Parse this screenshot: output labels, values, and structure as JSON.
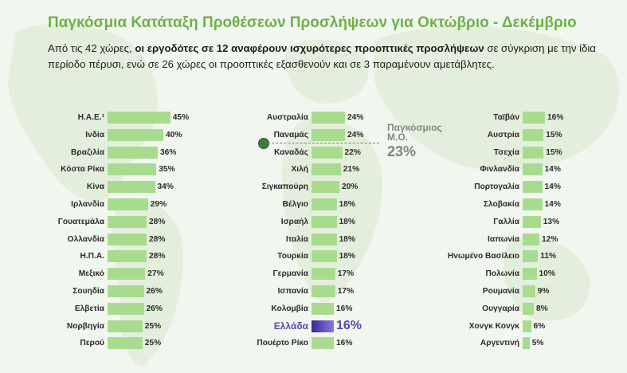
{
  "title": "Παγκόσμια Κατάταξη Προθέσεων Προσλήψεων για Οκτώβριο - Δεκέμβριο",
  "intro": {
    "part1": "Από τις 42 χώρες, ",
    "bold": "οι εργοδότες σε 12 αναφέρουν ισχυρότερες προοπτικές προσλήψεων",
    "part2": " σε σύγκριση με την ίδια περίοδο πέρυσι, ενώ σε 26 χώρες οι προοπτικές εξασθενούν και σε 3 παραμένουν αμετάβλητες."
  },
  "average": {
    "label_line1": "Παγκόσμιος",
    "label_line2": "Μ.Ο.",
    "value_label": "23%",
    "value": 23
  },
  "highlight_color": "#5844b8",
  "bar_color": "#a9db8f",
  "title_color": "#6fb04b",
  "chart_data": {
    "type": "bar",
    "orientation": "horizontal",
    "unit": "%",
    "columns": [
      {
        "categories": [
          "Η.Α.Ε.¹",
          "Ινδία",
          "Βραζιλία",
          "Κόστα Ρίκα",
          "Κίνα",
          "Ιρλανδία",
          "Γουατεμάλα",
          "Ολλανδία",
          "Η.Π.Α.",
          "Μεξικό",
          "Σουηδία",
          "Ελβετία",
          "Νορβηγία",
          "Περού"
        ],
        "values": [
          45,
          40,
          36,
          35,
          34,
          29,
          28,
          28,
          28,
          27,
          26,
          26,
          25,
          25
        ],
        "labels": [
          "45%",
          "40%",
          "36%",
          "35%",
          "34%",
          "29%",
          "28%",
          "28%",
          "28%",
          "27%",
          "26%",
          "26%",
          "25%",
          "25%"
        ]
      },
      {
        "categories": [
          "Αυστραλία",
          "Παναμάς",
          "Καναδάς",
          "Χιλή",
          "Σιγκαπούρη",
          "Βέλγιο",
          "Ισραήλ",
          "Ιταλία",
          "Τουρκία",
          "Γερμανία",
          "Ισπανία",
          "Κολομβία",
          "Ελλάδα",
          "Πουέρτο Ρίκο"
        ],
        "values": [
          24,
          24,
          22,
          21,
          20,
          18,
          18,
          18,
          18,
          17,
          17,
          16,
          16,
          16
        ],
        "labels": [
          "24%",
          "24%",
          "22%",
          "21%",
          "20%",
          "18%",
          "18%",
          "18%",
          "18%",
          "17%",
          "17%",
          "16%",
          "16%",
          "16%"
        ],
        "highlight": "Ελλάδα"
      },
      {
        "categories": [
          "Ταϊβάν",
          "Αυστρία",
          "Τσεχία",
          "Φινλανδία",
          "Πορτογαλία",
          "Σλοβακία",
          "Γαλλία",
          "Ιαπωνία",
          "Ηνωμένο Βασίλειο",
          "Πολωνία",
          "Ρουμανία",
          "Ουγγαρία",
          "Χονγκ Κονγκ",
          "Αργεντινή"
        ],
        "values": [
          16,
          15,
          15,
          14,
          14,
          14,
          13,
          12,
          11,
          10,
          9,
          8,
          6,
          5
        ],
        "labels": [
          "16%",
          "15%",
          "15%",
          "14%",
          "14%",
          "14%",
          "13%",
          "12%",
          "11%",
          "10%",
          "9%",
          "8%",
          "6%",
          "5%"
        ]
      }
    ]
  }
}
